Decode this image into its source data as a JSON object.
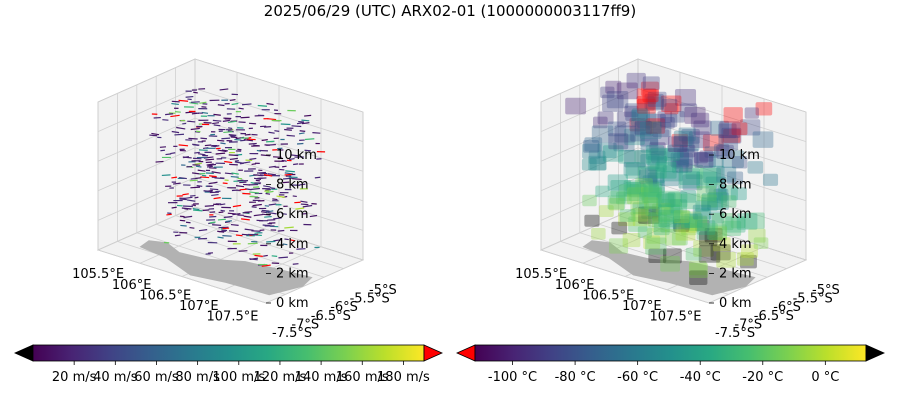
{
  "title": "2025/06/29 (UTC) ARX02-01 (1000000003117ff9)",
  "chart_data": [
    {
      "type": "scatter",
      "panel": "wind",
      "plot": "3d-vector-field",
      "x_ticks": [
        "105.5°E",
        "106°E",
        "106.5°E",
        "107°E",
        "107.5°E"
      ],
      "y_ticks": [
        "-5°S",
        "-5.5°S",
        "-6°S",
        "-6.5°S",
        "-7°S",
        "-7.5°S"
      ],
      "z_ticks": [
        "0 km",
        "2 km",
        "4 km",
        "6 km",
        "8 km",
        "10 km"
      ],
      "colorbar": {
        "colormap": "viridis",
        "extend": "both",
        "under_color": "#000000",
        "over_color": "#ff0000",
        "range": [
          0,
          190
        ],
        "tick_values": [
          20,
          40,
          60,
          80,
          100,
          120,
          140,
          160,
          180
        ],
        "tick_labels": [
          "20 m/s",
          "40 m/s",
          "60 m/s",
          "80 m/s",
          "100 m/s",
          "120 m/s",
          "140 m/s",
          "160 m/s",
          "180 m/s"
        ]
      }
    },
    {
      "type": "scatter",
      "panel": "temperature",
      "plot": "3d-voxels",
      "x_ticks": [
        "105.5°E",
        "106°E",
        "106.5°E",
        "107°E",
        "107.5°E"
      ],
      "y_ticks": [
        "-5°S",
        "-5.5°S",
        "-6°S",
        "-6.5°S",
        "-7°S",
        "-7.5°S"
      ],
      "z_ticks": [
        "0 km",
        "2 km",
        "4 km",
        "6 km",
        "8 km",
        "10 km"
      ],
      "colorbar": {
        "colormap": "viridis",
        "extend": "both",
        "under_color": "#ff0000",
        "over_color": "#000000",
        "range": [
          -112,
          13
        ],
        "tick_values": [
          -100,
          -80,
          -60,
          -40,
          -20,
          0
        ],
        "tick_labels": [
          "-100 °C",
          "-80 °C",
          "-60 °C",
          "-40 °C",
          "-20 °C",
          "0 °C"
        ]
      }
    }
  ]
}
